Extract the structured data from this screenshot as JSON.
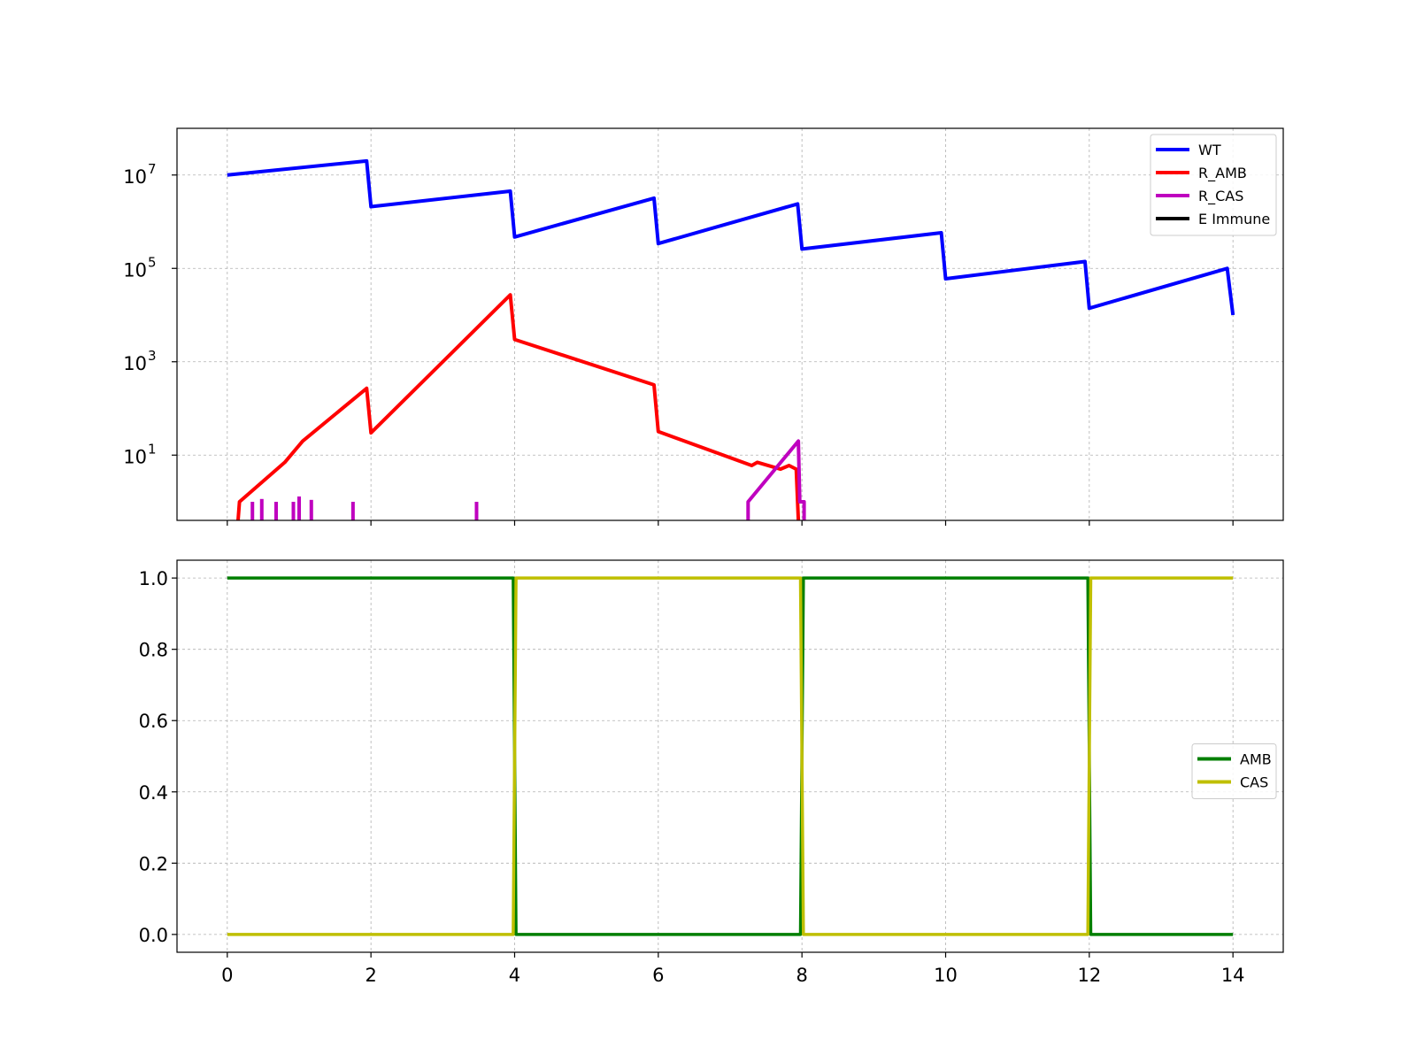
{
  "chart_data": [
    {
      "type": "line",
      "yscale": "log",
      "xlim": [
        -0.7,
        14.7
      ],
      "ylim": [
        0.4,
        100000000
      ],
      "yticks": [
        {
          "value": 10,
          "base": "10",
          "exp": "1"
        },
        {
          "value": 1000,
          "base": "10",
          "exp": "3"
        },
        {
          "value": 100000,
          "base": "10",
          "exp": "5"
        },
        {
          "value": 10000000,
          "base": "10",
          "exp": "7"
        }
      ],
      "xticks": [
        0,
        2,
        4,
        6,
        8,
        10,
        12,
        14
      ],
      "grid": true,
      "legend_position": "top-right",
      "series": [
        {
          "name": "WT",
          "color": "#0000ff",
          "x": [
            0,
            1.94,
            2.0,
            3.94,
            4.0,
            5.94,
            6.0,
            7.94,
            8.0,
            9.94,
            10.0,
            11.94,
            12.0,
            13.92,
            14.0
          ],
          "y": [
            10000000,
            20000000,
            2100000,
            4500000,
            470000,
            3200000,
            340000,
            2400000,
            260000,
            580000,
            60000,
            140000,
            14000,
            100000,
            10000
          ]
        },
        {
          "name": "R_AMB",
          "color": "#ff0000",
          "x": [
            0.15,
            0.17,
            0.8,
            1.05,
            1.94,
            2.0,
            3.94,
            4.0,
            5.94,
            6.0,
            7.3,
            7.38,
            7.7,
            7.82,
            7.92,
            7.95,
            7.97
          ],
          "y": [
            0.4,
            1,
            7,
            20,
            270,
            30,
            27000,
            3000,
            320,
            32,
            6,
            7,
            5,
            6,
            5,
            0.4,
            0.4
          ]
        },
        {
          "name": "R_CAS",
          "color": "#bf00bf",
          "x": [
            7.25,
            7.25,
            7.95,
            7.97,
            8.03,
            8.03
          ],
          "y": [
            0.4,
            1,
            20,
            1,
            1,
            0.4
          ]
        },
        {
          "name": "E Immune",
          "color": "#000000",
          "x": [],
          "y": []
        }
      ],
      "spikes": {
        "color": "#bf00bf",
        "x": [
          0.35,
          0.48,
          0.68,
          0.92,
          1.0,
          1.17,
          1.75,
          3.47
        ],
        "y": [
          1,
          1.15,
          1,
          1,
          1.3,
          1.1,
          1,
          1
        ]
      }
    },
    {
      "type": "line",
      "xlim": [
        -0.7,
        14.7
      ],
      "ylim": [
        -0.05,
        1.05
      ],
      "yticks": [
        "0.0",
        "0.2",
        "0.4",
        "0.6",
        "0.8",
        "1.0"
      ],
      "xticks": [
        "0",
        "2",
        "4",
        "6",
        "8",
        "10",
        "12",
        "14"
      ],
      "grid": true,
      "legend_position": "center-right",
      "series": [
        {
          "name": "AMB",
          "color": "#007f00",
          "x": [
            0,
            3.98,
            4.02,
            7.98,
            8.02,
            11.98,
            12.02,
            14
          ],
          "y": [
            1,
            1,
            0,
            0,
            1,
            1,
            0,
            0
          ]
        },
        {
          "name": "CAS",
          "color": "#bfbf00",
          "x": [
            0,
            3.98,
            4.02,
            7.98,
            8.02,
            11.98,
            12.02,
            14
          ],
          "y": [
            0,
            0,
            1,
            1,
            0,
            0,
            1,
            1
          ]
        }
      ]
    }
  ]
}
